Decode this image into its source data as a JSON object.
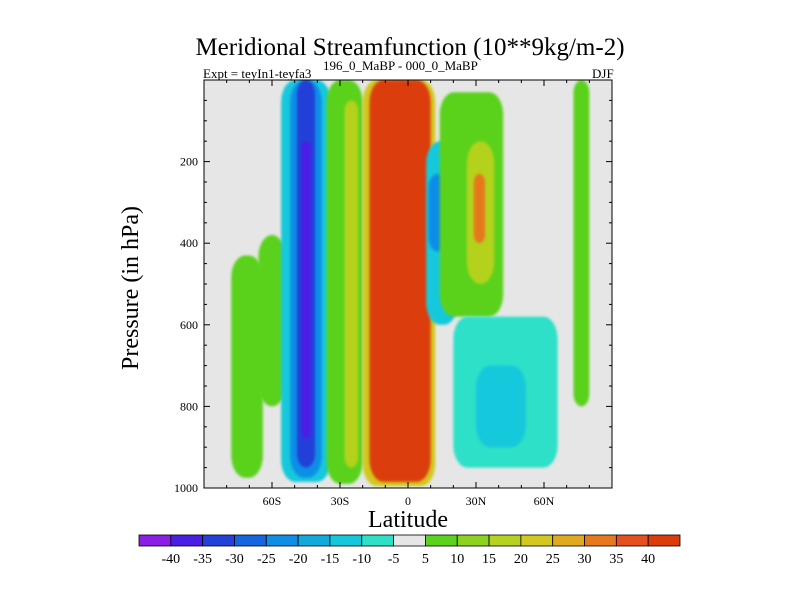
{
  "chart_data": {
    "type": "heatmap",
    "title": "Meridional Streamfunction (10**9kg/m-2)",
    "experiment": "Expt = teyIn1-teyfa3",
    "period_text": "196_0_MaBP - 000_0_MaBP",
    "season": "DJF",
    "xlabel": "Latitude",
    "ylabel": "Pressure (in hPa)",
    "xlim": [
      -90,
      90
    ],
    "ylim": [
      0,
      1000
    ],
    "x_ticks": [
      {
        "value": -60,
        "label": "60S"
      },
      {
        "value": -30,
        "label": "30S"
      },
      {
        "value": 0,
        "label": "0"
      },
      {
        "value": 30,
        "label": "30N"
      },
      {
        "value": 60,
        "label": "60N"
      }
    ],
    "y_ticks": [
      {
        "value": 200,
        "label": "200"
      },
      {
        "value": 400,
        "label": "400"
      },
      {
        "value": 600,
        "label": "600"
      },
      {
        "value": 800,
        "label": "800"
      },
      {
        "value": 1000,
        "label": "1000"
      }
    ],
    "colorbar": {
      "levels": [
        "-40",
        "-35",
        "-30",
        "-25",
        "-20",
        "-15",
        "-10",
        "-5",
        "5",
        "10",
        "15",
        "20",
        "25",
        "30",
        "35",
        "40"
      ],
      "colors": [
        "#8c1ee6",
        "#4b1ee6",
        "#2241d8",
        "#1466e0",
        "#0f8ee6",
        "#12aadc",
        "#14c8dc",
        "#2ee0c8",
        "#e6e6e6",
        "#5ad21e",
        "#8cd21e",
        "#b4d21e",
        "#d2c81e",
        "#e1aa1e",
        "#e6781e",
        "#e6501e",
        "#dc3c0a"
      ]
    },
    "background_color": "#e6e6e6",
    "regions": [
      {
        "name": "green-high-lat-south",
        "lat": [
          -78,
          -64
        ],
        "p": [
          430,
          975
        ],
        "value": 7
      },
      {
        "name": "green-low-south",
        "lat": [
          -66,
          -54
        ],
        "p": [
          380,
          800
        ],
        "value": 7
      },
      {
        "name": "blue-cell-outer",
        "lat": [
          -56,
          -34
        ],
        "p": [
          0,
          985
        ],
        "value": -12
      },
      {
        "name": "blue-cell-mid",
        "lat": [
          -52,
          -38
        ],
        "p": [
          0,
          975
        ],
        "value": -22
      },
      {
        "name": "blue-cell-inner",
        "lat": [
          -49,
          -41
        ],
        "p": [
          0,
          950
        ],
        "value": -32
      },
      {
        "name": "blue-cell-core",
        "lat": [
          -47,
          -43
        ],
        "p": [
          150,
          880
        ],
        "value": -38
      },
      {
        "name": "green-subtrop-south",
        "lat": [
          -36,
          -20
        ],
        "p": [
          0,
          990
        ],
        "value": 8
      },
      {
        "name": "yellow-subtrop-south",
        "lat": [
          -28,
          -22
        ],
        "p": [
          50,
          950
        ],
        "value": 18
      },
      {
        "name": "hadley-outer",
        "lat": [
          -20,
          12
        ],
        "p": [
          0,
          995
        ],
        "value": 20
      },
      {
        "name": "hadley-core",
        "lat": [
          -17,
          10
        ],
        "p": [
          0,
          985
        ],
        "value": 42
      },
      {
        "name": "cyan-tropic-north",
        "lat": [
          8,
          22
        ],
        "p": [
          150,
          600
        ],
        "value": -12
      },
      {
        "name": "blue-tropic-north",
        "lat": [
          9,
          17
        ],
        "p": [
          230,
          420
        ],
        "value": -25
      },
      {
        "name": "green-ferrel-north",
        "lat": [
          14,
          42
        ],
        "p": [
          30,
          580
        ],
        "value": 8
      },
      {
        "name": "yellow-ferrel-north",
        "lat": [
          26,
          38
        ],
        "p": [
          150,
          500
        ],
        "value": 18
      },
      {
        "name": "orange-ferrel-north",
        "lat": [
          29,
          34
        ],
        "p": [
          230,
          400
        ],
        "value": 30
      },
      {
        "name": "cyan-midlat-north",
        "lat": [
          20,
          66
        ],
        "p": [
          580,
          950
        ],
        "value": -8
      },
      {
        "name": "blue-midlat-north",
        "lat": [
          30,
          52
        ],
        "p": [
          700,
          900
        ],
        "value": -15
      },
      {
        "name": "green-polar-north",
        "lat": [
          73,
          80
        ],
        "p": [
          0,
          800
        ],
        "value": 7
      }
    ]
  }
}
